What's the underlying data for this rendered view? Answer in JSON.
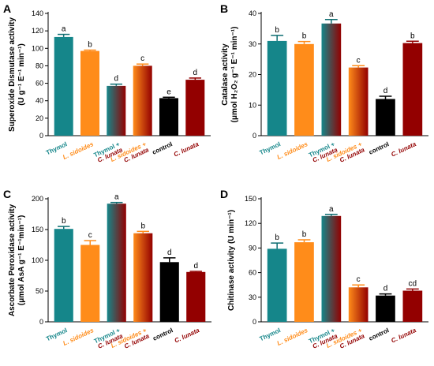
{
  "colors": {
    "thymol": "#15868a",
    "ls": "#ff8c1a",
    "cl": "#930000",
    "control": "#000000",
    "thymol_error": "#0e6e72"
  },
  "chart_data": [
    {
      "type": "bar",
      "panel": "A",
      "ylabel_lines": [
        "Superoxide Dismutase activity",
        "(U g⁻¹ E⁻¹ min⁻¹)"
      ],
      "ylim": [
        0,
        140
      ],
      "yticks": [
        "0",
        "20",
        "40",
        "60",
        "80",
        "100",
        "120",
        "140"
      ],
      "categories": [
        {
          "lines": [
            "Thymol"
          ],
          "italic": [
            false
          ],
          "color": "thymol"
        },
        {
          "lines": [
            "L. sidoides"
          ],
          "italic": [
            true
          ],
          "color": "ls"
        },
        {
          "lines": [
            "Thymol +",
            "C. lunata"
          ],
          "italic": [
            false,
            true
          ],
          "color": "thymol"
        },
        {
          "lines": [
            "L. sidoides +",
            "C. lunata"
          ],
          "italic": [
            true,
            true
          ],
          "color": "ls"
        },
        {
          "lines": [
            "control"
          ],
          "italic": [
            false
          ],
          "color": "control"
        },
        {
          "lines": [
            "C. lunata"
          ],
          "italic": [
            true
          ],
          "color": "cl"
        }
      ],
      "values": [
        113,
        97,
        57,
        80,
        43,
        64
      ],
      "errors": [
        3,
        1,
        2,
        2,
        1,
        2
      ],
      "letters": [
        "a",
        "b",
        "d",
        "c",
        "e",
        "d"
      ]
    },
    {
      "type": "bar",
      "panel": "B",
      "ylabel_lines": [
        "Catalase activity",
        "(μmol H₂O₂ g⁻¹ E⁻¹ min⁻¹)"
      ],
      "ylim": [
        0,
        40
      ],
      "yticks": [
        "0",
        "10",
        "20",
        "30",
        "40"
      ],
      "categories": [
        {
          "lines": [
            "Thymol"
          ],
          "italic": [
            false
          ],
          "color": "thymol"
        },
        {
          "lines": [
            "L. sidoides"
          ],
          "italic": [
            true
          ],
          "color": "ls"
        },
        {
          "lines": [
            "Thymol +",
            "C. lunata"
          ],
          "italic": [
            false,
            true
          ],
          "color": "thymol"
        },
        {
          "lines": [
            "L. sidoides +",
            "C. lunata"
          ],
          "italic": [
            true,
            true
          ],
          "color": "ls"
        },
        {
          "lines": [
            "control"
          ],
          "italic": [
            false
          ],
          "color": "control"
        },
        {
          "lines": [
            "C. lunata"
          ],
          "italic": [
            true
          ],
          "color": "cl"
        }
      ],
      "values": [
        31,
        30,
        36.7,
        22.3,
        12,
        30.3
      ],
      "errors": [
        1.8,
        0.8,
        1.3,
        0.6,
        0.9,
        0.6
      ],
      "letters": [
        "b",
        "b",
        "a",
        "c",
        "d",
        "b"
      ]
    },
    {
      "type": "bar",
      "panel": "C",
      "ylabel_lines": [
        "Ascorbate Peroxidase activity",
        "(μmol AsA g⁻¹ E⁻¹min⁻¹)"
      ],
      "ylim": [
        0,
        200
      ],
      "yticks": [
        "0",
        "50",
        "100",
        "150",
        "200"
      ],
      "categories": [
        {
          "lines": [
            "Thymol"
          ],
          "italic": [
            false
          ],
          "color": "thymol"
        },
        {
          "lines": [
            "L. sidoides"
          ],
          "italic": [
            true
          ],
          "color": "ls"
        },
        {
          "lines": [
            "Thymol +",
            "C. lunata"
          ],
          "italic": [
            false,
            true
          ],
          "color": "thymol"
        },
        {
          "lines": [
            "L. sidoides +",
            "C. lunata"
          ],
          "italic": [
            true,
            true
          ],
          "color": "ls"
        },
        {
          "lines": [
            "control"
          ],
          "italic": [
            false
          ],
          "color": "control"
        },
        {
          "lines": [
            "C. lunata"
          ],
          "italic": [
            true
          ],
          "color": "cl"
        }
      ],
      "values": [
        151,
        125,
        192,
        144,
        97,
        81
      ],
      "errors": [
        4,
        7,
        2,
        3,
        7,
        1
      ],
      "letters": [
        "b",
        "c",
        "a",
        "b",
        "d",
        "d"
      ]
    },
    {
      "type": "bar",
      "panel": "D",
      "ylabel_lines": [
        "Chitinase activity (U min⁻¹)"
      ],
      "ylim": [
        0,
        150
      ],
      "yticks": [
        "0",
        "30",
        "60",
        "90",
        "120",
        "150"
      ],
      "categories": [
        {
          "lines": [
            "Thymol"
          ],
          "italic": [
            false
          ],
          "color": "thymol"
        },
        {
          "lines": [
            "L. sidoides"
          ],
          "italic": [
            true
          ],
          "color": "ls"
        },
        {
          "lines": [
            "Thymol +",
            "C. lunata"
          ],
          "italic": [
            false,
            true
          ],
          "color": "thymol"
        },
        {
          "lines": [
            "L. sidoides +",
            "C. lunata"
          ],
          "italic": [
            true,
            true
          ],
          "color": "ls"
        },
        {
          "lines": [
            "control"
          ],
          "italic": [
            false
          ],
          "color": "control"
        },
        {
          "lines": [
            "C. lunata"
          ],
          "italic": [
            true
          ],
          "color": "cl"
        }
      ],
      "values": [
        89,
        97,
        129,
        42,
        32,
        38
      ],
      "errors": [
        7,
        3,
        2,
        3,
        2,
        2
      ],
      "letters": [
        "b",
        "b",
        "a",
        "c",
        "d",
        "cd"
      ]
    }
  ]
}
